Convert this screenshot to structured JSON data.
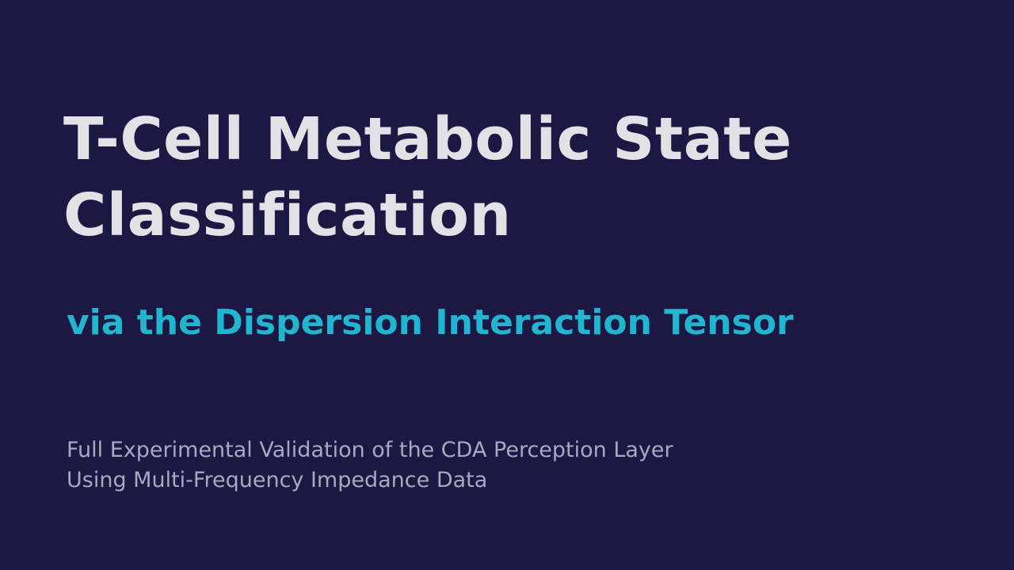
{
  "title_lines": [
    "T-Cell Metabolic State",
    "Classification"
  ],
  "subtitle": "via the Dispersion Interaction Tensor",
  "description_lines": [
    "Full Experimental Validation of the CDA Perception Layer",
    "Using Multi-Frequency Impedance Data"
  ]
}
